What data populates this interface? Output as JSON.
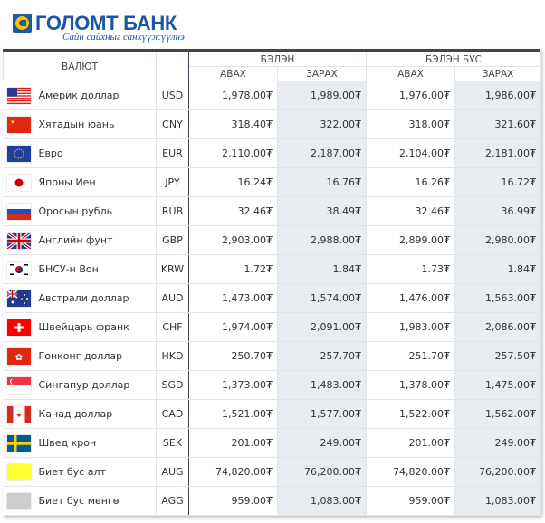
{
  "brand": {
    "name": "ГОЛОМТ БАНК",
    "slogan": "Сайн сайхныг санхүүжүүлнэ"
  },
  "table": {
    "header": {
      "currency": "ВАЛЮТ",
      "cash": "БЭЛЭН",
      "noncash": "БЭЛЭН БУС",
      "buy": "АВАХ",
      "sell": "ЗАРАХ"
    },
    "rows": [
      {
        "flag": "us-flag-icon",
        "name": "Америк доллар",
        "code": "USD",
        "cash_buy": "1,978.00₮",
        "cash_sell": "1,989.00₮",
        "noncash_buy": "1,976.00₮",
        "noncash_sell": "1,986.00₮"
      },
      {
        "flag": "cn-flag-icon",
        "name": "Хятадын юань",
        "code": "CNY",
        "cash_buy": "318.40₮",
        "cash_sell": "322.00₮",
        "noncash_buy": "318.00₮",
        "noncash_sell": "321.60₮"
      },
      {
        "flag": "eu-flag-icon",
        "name": "Евро",
        "code": "EUR",
        "cash_buy": "2,110.00₮",
        "cash_sell": "2,187.00₮",
        "noncash_buy": "2,104.00₮",
        "noncash_sell": "2,181.00₮"
      },
      {
        "flag": "jp-flag-icon",
        "name": "Японы Иен",
        "code": "JPY",
        "cash_buy": "16.24₮",
        "cash_sell": "16.76₮",
        "noncash_buy": "16.26₮",
        "noncash_sell": "16.72₮"
      },
      {
        "flag": "ru-flag-icon",
        "name": "Оросын рубль",
        "code": "RUB",
        "cash_buy": "32.46₮",
        "cash_sell": "38.49₮",
        "noncash_buy": "32.46₮",
        "noncash_sell": "36.99₮"
      },
      {
        "flag": "gb-flag-icon",
        "name": "Английн фунт",
        "code": "GBP",
        "cash_buy": "2,903.00₮",
        "cash_sell": "2,988.00₮",
        "noncash_buy": "2,899.00₮",
        "noncash_sell": "2,980.00₮"
      },
      {
        "flag": "kr-flag-icon",
        "name": "БНСУ-н Вон",
        "code": "KRW",
        "cash_buy": "1.72₮",
        "cash_sell": "1.84₮",
        "noncash_buy": "1.73₮",
        "noncash_sell": "1.84₮"
      },
      {
        "flag": "au-flag-icon",
        "name": "Австрали доллар",
        "code": "AUD",
        "cash_buy": "1,473.00₮",
        "cash_sell": "1,574.00₮",
        "noncash_buy": "1,476.00₮",
        "noncash_sell": "1,563.00₮"
      },
      {
        "flag": "ch-flag-icon",
        "name": "Швейцарь франк",
        "code": "CHF",
        "cash_buy": "1,974.00₮",
        "cash_sell": "2,091.00₮",
        "noncash_buy": "1,983.00₮",
        "noncash_sell": "2,086.00₮"
      },
      {
        "flag": "hk-flag-icon",
        "name": "Гонконг доллар",
        "code": "HKD",
        "cash_buy": "250.70₮",
        "cash_sell": "257.70₮",
        "noncash_buy": "251.70₮",
        "noncash_sell": "257.50₮"
      },
      {
        "flag": "sg-flag-icon",
        "name": "Сингапур доллар",
        "code": "SGD",
        "cash_buy": "1,373.00₮",
        "cash_sell": "1,483.00₮",
        "noncash_buy": "1,378.00₮",
        "noncash_sell": "1,475.00₮"
      },
      {
        "flag": "ca-flag-icon",
        "name": "Канад доллар",
        "code": "CAD",
        "cash_buy": "1,521.00₮",
        "cash_sell": "1,577.00₮",
        "noncash_buy": "1,522.00₮",
        "noncash_sell": "1,562.00₮"
      },
      {
        "flag": "se-flag-icon",
        "name": "Швед крон",
        "code": "SEK",
        "cash_buy": "201.00₮",
        "cash_sell": "249.00₮",
        "noncash_buy": "201.00₮",
        "noncash_sell": "249.00₮"
      },
      {
        "flag": "gold-swatch-icon",
        "name": "Биет бус алт",
        "code": "AUG",
        "cash_buy": "74,820.00₮",
        "cash_sell": "76,200.00₮",
        "noncash_buy": "74,820.00₮",
        "noncash_sell": "76,200.00₮"
      },
      {
        "flag": "silver-swatch-icon",
        "name": "Биет бус мөнгө",
        "code": "AGG",
        "cash_buy": "959.00₮",
        "cash_sell": "1,083.00₮",
        "noncash_buy": "959.00₮",
        "noncash_sell": "1,083.00₮"
      }
    ]
  },
  "colors": {
    "brand_blue": "#1c57a5",
    "brand_yellow": "#f6c400",
    "header_border": "#404654",
    "sell_column_bg": "#e9ecf1",
    "gold": "#ffff33",
    "silver": "#cccccc"
  }
}
